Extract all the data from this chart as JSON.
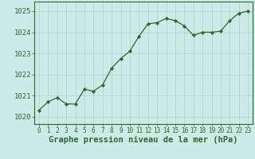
{
  "x": [
    0,
    1,
    2,
    3,
    4,
    5,
    6,
    7,
    8,
    9,
    10,
    11,
    12,
    13,
    14,
    15,
    16,
    17,
    18,
    19,
    20,
    21,
    22,
    23
  ],
  "y": [
    1020.3,
    1020.7,
    1020.9,
    1020.6,
    1020.6,
    1021.3,
    1021.2,
    1021.5,
    1022.3,
    1022.75,
    1023.1,
    1023.8,
    1024.4,
    1024.45,
    1024.65,
    1024.55,
    1024.3,
    1023.85,
    1024.0,
    1024.0,
    1024.05,
    1024.55,
    1024.9,
    1025.0
  ],
  "line_color": "#2d6a2d",
  "marker_color": "#2d6a2d",
  "bg_color": "#cceae7",
  "grid_color": "#aad4d0",
  "xlabel": "Graphe pression niveau de la mer (hPa)",
  "ylabel_ticks": [
    1020,
    1021,
    1022,
    1023,
    1024,
    1025
  ],
  "xlim": [
    -0.5,
    23.5
  ],
  "ylim": [
    1019.65,
    1025.45
  ],
  "xticks": [
    0,
    1,
    2,
    3,
    4,
    5,
    6,
    7,
    8,
    9,
    10,
    11,
    12,
    13,
    14,
    15,
    16,
    17,
    18,
    19,
    20,
    21,
    22,
    23
  ],
  "xlabel_fontsize": 7.5,
  "ytick_fontsize": 6.5,
  "xtick_fontsize": 5.5
}
